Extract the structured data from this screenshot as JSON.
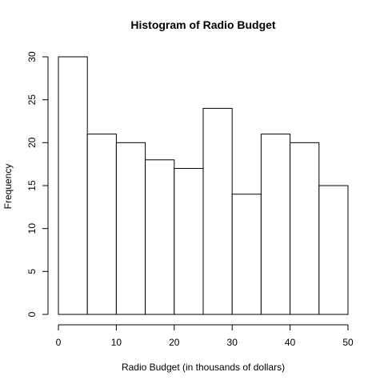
{
  "chart_data": {
    "type": "bar",
    "subtype": "histogram",
    "title": "Histogram of Radio Budget",
    "xlabel": "Radio Budget (in thousands of dollars)",
    "ylabel": "Frequency",
    "bin_edges": [
      0,
      5,
      10,
      15,
      20,
      25,
      30,
      35,
      40,
      45,
      50
    ],
    "categories": [
      "0-5",
      "5-10",
      "10-15",
      "15-20",
      "20-25",
      "25-30",
      "30-35",
      "35-40",
      "40-45",
      "45-50"
    ],
    "values": [
      30,
      21,
      20,
      18,
      17,
      24,
      14,
      21,
      20,
      15
    ],
    "xlim": [
      0,
      50
    ],
    "ylim": [
      0,
      30
    ],
    "x_ticks": [
      0,
      10,
      20,
      30,
      40,
      50
    ],
    "y_ticks": [
      0,
      5,
      10,
      15,
      20,
      25,
      30
    ],
    "grid": false,
    "bar_fill": "#ffffff",
    "bar_stroke": "#000000"
  }
}
